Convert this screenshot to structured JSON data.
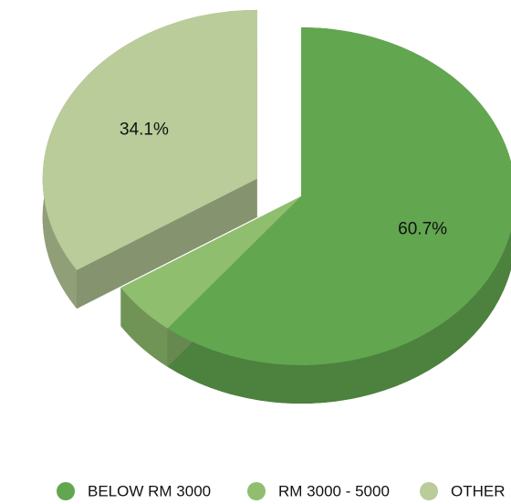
{
  "chart_data": {
    "type": "pie",
    "categories": [
      "BELOW RM 3000",
      "RM 3000 - 5000",
      "OTHER"
    ],
    "values": [
      60.7,
      5.2,
      34.1
    ],
    "value_labels": [
      "60.7%",
      null,
      "34.1%"
    ],
    "colors": [
      "#62a650",
      "#8fbe6e",
      "#b9cc9a"
    ],
    "exploded": [
      false,
      false,
      true
    ],
    "legend": "bottom"
  }
}
